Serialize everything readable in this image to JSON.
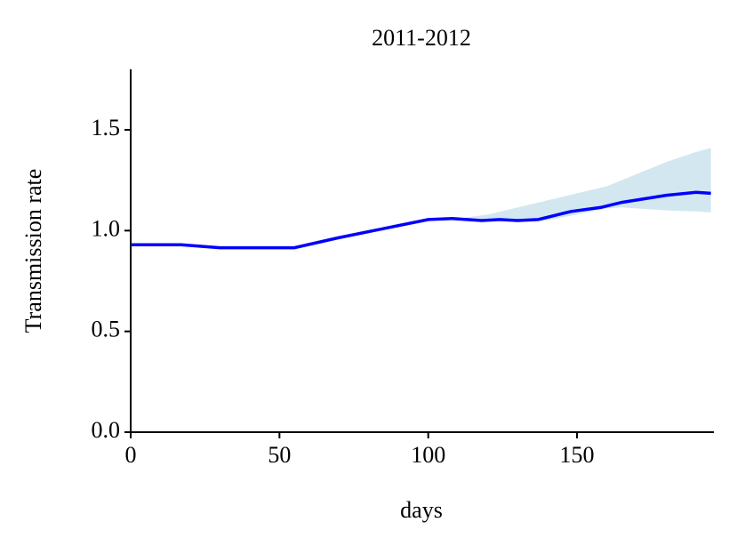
{
  "chart_data": {
    "type": "line",
    "title": "2011-2012",
    "x_label": "days",
    "y_label": "Transmission rate",
    "xlim": [
      0,
      196
    ],
    "ylim": [
      0,
      1.8
    ],
    "xticks": [
      0,
      50,
      100,
      150
    ],
    "yticks": [
      {
        "value": 0,
        "label": "0.0"
      },
      0.5,
      {
        "value": 1,
        "label": "1.0"
      },
      1.5
    ],
    "series": [
      {
        "color": "#0000ff",
        "x": [
          0,
          17,
          30,
          55,
          70,
          85,
          100,
          108,
          118,
          124,
          130,
          137,
          148,
          158,
          165,
          180,
          190,
          195
        ],
        "values": [
          0.93,
          0.93,
          0.915,
          0.915,
          0.965,
          1.01,
          1.055,
          1.06,
          1.05,
          1.055,
          1.05,
          1.055,
          1.095,
          1.115,
          1.14,
          1.175,
          1.19,
          1.185
        ]
      }
    ],
    "band": {
      "color": "#d3e7f0",
      "x": [
        110,
        120,
        140,
        160,
        165,
        180,
        190,
        195
      ],
      "lower": [
        1.06,
        1.05,
        1.05,
        1.11,
        1.115,
        1.1,
        1.095,
        1.09
      ],
      "upper": [
        1.06,
        1.08,
        1.15,
        1.22,
        1.25,
        1.34,
        1.39,
        1.41
      ]
    }
  }
}
